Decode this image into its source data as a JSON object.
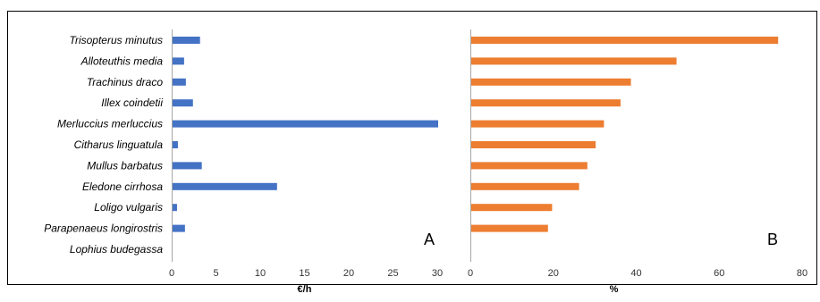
{
  "chart_data": [
    {
      "type": "bar",
      "orientation": "horizontal",
      "panel_label": "A",
      "categories": [
        "Trisopterus minutus",
        "Alloteuthis media",
        "Trachinus draco",
        "Illex coindetii",
        "Merluccius merluccius",
        "Citharus linguatula",
        "Mullus barbatus",
        "Eledone cirrhosa",
        "Loligo vulgaris",
        "Parapenaeus longirostris",
        "Lophius budegassa"
      ],
      "values": [
        3.1,
        1.3,
        1.5,
        2.3,
        30.0,
        0.6,
        3.3,
        11.8,
        0.5,
        1.4,
        0.0
      ],
      "xlabel": "€/h",
      "xlim": [
        0,
        30
      ],
      "xticks": [
        0,
        5,
        10,
        15,
        20,
        25,
        30
      ],
      "grid": false,
      "colors": {
        "bar": "#4472c4"
      }
    },
    {
      "type": "bar",
      "orientation": "horizontal",
      "panel_label": "B",
      "categories": [
        "Trisopterus minutus",
        "Alloteuthis media",
        "Trachinus draco",
        "Illex coindetii",
        "Merluccius merluccius",
        "Citharus linguatula",
        "Mullus barbatus",
        "Eledone cirrhosa",
        "Loligo vulgaris",
        "Parapenaeus longirostris",
        "Lophius budegassa"
      ],
      "values": [
        74,
        49.5,
        38.5,
        36,
        32,
        30,
        28,
        26,
        19.5,
        18.5,
        0
      ],
      "xlabel": "%",
      "xlim": [
        0,
        80
      ],
      "xticks": [
        0,
        20,
        40,
        60,
        80
      ],
      "grid": false,
      "colors": {
        "bar": "#ed7d31"
      }
    }
  ]
}
